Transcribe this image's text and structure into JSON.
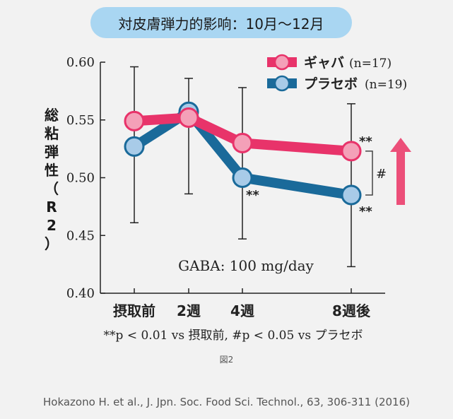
{
  "title": "対皮膚弾力的影响：10月～12月",
  "figure_label": "図2",
  "citation": "Hokazono H. et al., J. Jpn. Soc. Food Sci. Technol., 63, 306-311 (2016)",
  "colors": {
    "gaba": "#e8336a",
    "gaba_fill": "#f4a0b8",
    "placebo": "#1a6a9a",
    "placebo_fill": "#a8cbe8",
    "arrow": "#ec4f79"
  },
  "chart_data": {
    "type": "line",
    "categories": [
      "摂取前",
      "2週",
      "4週",
      "8週後"
    ],
    "ylabel": [
      "総",
      "粘",
      "弾",
      "性",
      "（",
      "R",
      "2",
      "）"
    ],
    "ylim": [
      0.4,
      0.6
    ],
    "yticks": [
      "0.40",
      "0.45",
      "0.50",
      "0.55",
      "0.60"
    ],
    "series": [
      {
        "name": "ギャバ",
        "n_label": "(n=17)",
        "values": [
          0.549,
          0.552,
          0.53,
          0.523
        ]
      },
      {
        "name": "プラセボ",
        "n_label": "(n=19)",
        "values": [
          0.527,
          0.557,
          0.5,
          0.485
        ]
      }
    ],
    "error_bars": [
      {
        "x": "摂取前",
        "low": 0.461,
        "high": 0.596
      },
      {
        "x": "2週",
        "low": 0.486,
        "high": 0.586
      },
      {
        "x": "4週",
        "low": 0.447,
        "high": 0.578
      },
      {
        "x": "8週後",
        "low": 0.423,
        "high": 0.564
      }
    ],
    "annotations": {
      "dose": "GABA: 100 mg/day",
      "sig_placebo_4w": "**",
      "sig_gaba_8w": "**",
      "sig_placebo_8w": "**",
      "sig_between": "#",
      "footnote": "**p < 0.01 vs 摂取前, #p < 0.05 vs プラセボ"
    },
    "legend": "top-right",
    "grid": false
  }
}
